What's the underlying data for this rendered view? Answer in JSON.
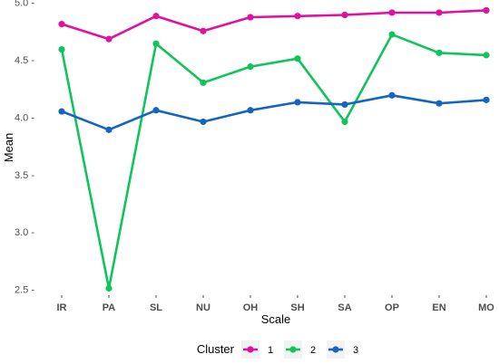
{
  "chart_data": {
    "type": "line",
    "xlabel": "Scale",
    "ylabel": "Mean",
    "categories": [
      "IR",
      "PA",
      "SL",
      "NU",
      "OH",
      "SH",
      "SA",
      "OP",
      "EN",
      "MO"
    ],
    "ylim": [
      2.45,
      5.02
    ],
    "yticks": [
      2.5,
      3.0,
      3.5,
      4.0,
      4.5,
      5.0
    ],
    "ytick_labels": [
      "2.5 -",
      "3.0 -",
      "3.5 -",
      "4.0 -",
      "4.5 -",
      "5.0 -"
    ],
    "grid": false,
    "legend": {
      "title": "Cluster",
      "position": "bottom"
    },
    "series": [
      {
        "name": "1",
        "color": "#e0119f",
        "values": [
          4.81,
          4.68,
          4.88,
          4.75,
          4.87,
          4.88,
          4.89,
          4.91,
          4.91,
          4.93
        ]
      },
      {
        "name": "2",
        "color": "#10c45c",
        "values": [
          4.59,
          2.51,
          4.64,
          4.3,
          4.44,
          4.51,
          3.96,
          4.72,
          4.56,
          4.54
        ]
      },
      {
        "name": "3",
        "color": "#1565c0",
        "values": [
          4.05,
          3.89,
          4.06,
          3.96,
          4.06,
          4.13,
          4.11,
          4.19,
          4.12,
          4.15
        ]
      }
    ]
  }
}
